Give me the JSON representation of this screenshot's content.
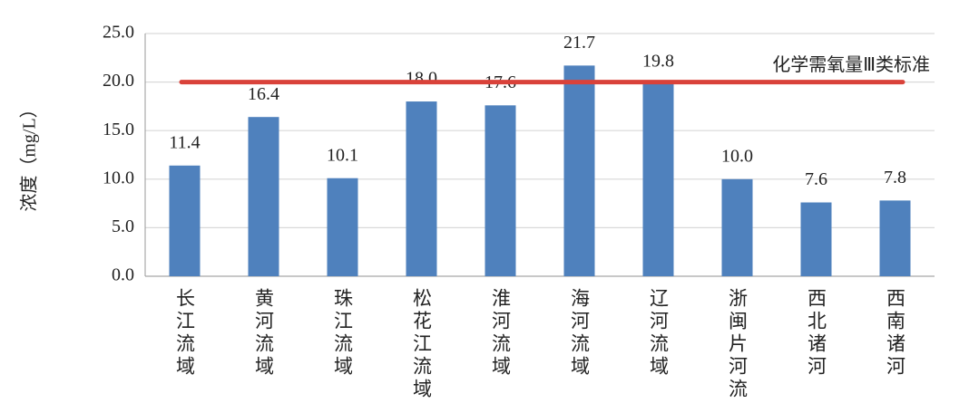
{
  "chart_data": {
    "type": "bar",
    "y_label": "浓度（mg/L）",
    "categories": [
      "长江流域",
      "黄河流域",
      "珠江流域",
      "松花江流域",
      "淮河流域",
      "海河流域",
      "辽河流域",
      "浙闽片河流",
      "西北诸河",
      "西南诸河"
    ],
    "values": [
      11.4,
      16.4,
      10.1,
      18.0,
      17.6,
      21.7,
      19.8,
      10.0,
      7.6,
      7.8
    ],
    "value_labels": [
      "11.4",
      "16.4",
      "10.1",
      "18.0",
      "17.6",
      "21.7",
      "19.8",
      "10.0",
      "7.6",
      "7.8"
    ],
    "color": "#4f81bd",
    "ylim": [
      0,
      25
    ],
    "yticks": [
      {
        "value": 0,
        "label": "0.0"
      },
      {
        "value": 5,
        "label": "5.0"
      },
      {
        "value": 10,
        "label": "10.0"
      },
      {
        "value": 15,
        "label": "15.0"
      },
      {
        "value": 20,
        "label": "20.0"
      },
      {
        "value": 25,
        "label": "25.0"
      }
    ],
    "grid": true,
    "reference_line": {
      "value": 20,
      "label": "化学需氧量Ⅲ类标准",
      "color": "#d9423a"
    }
  }
}
